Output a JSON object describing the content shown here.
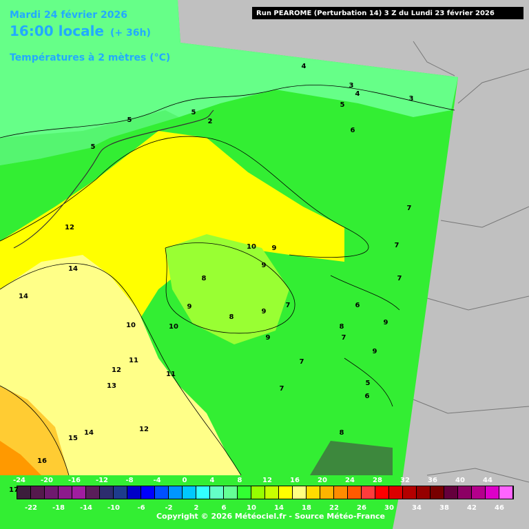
{
  "header": {
    "date": "Mardi 24 février 2026",
    "time": "16:00 locale",
    "lead": "(+ 36h)",
    "variable": "Températures à 2 mètres (°C)",
    "run": "Run PEAROME (Perturbation 14) 3 Z du Lundi 23 février 2026"
  },
  "map": {
    "contour_labels": [
      "4",
      "3",
      "4",
      "3",
      "5",
      "5",
      "5",
      "2",
      "6",
      "5",
      "7",
      "12",
      "10",
      "9",
      "7",
      "14",
      "9",
      "8",
      "7",
      "14",
      "7",
      "6",
      "9",
      "9",
      "8",
      "10",
      "10",
      "8",
      "9",
      "7",
      "9",
      "9",
      "11",
      "12",
      "7",
      "11",
      "13",
      "5",
      "7",
      "6",
      "14",
      "12",
      "8",
      "15",
      "16"
    ]
  },
  "colorbar": {
    "cursor_value": "17",
    "top_labels": [
      "-24",
      "-20",
      "-16",
      "-12",
      "-8",
      "-4",
      "0",
      "4",
      "8",
      "12",
      "16",
      "20",
      "24",
      "28",
      "32",
      "36",
      "40",
      "44"
    ],
    "bottom_labels": [
      "-22",
      "-18",
      "-14",
      "-10",
      "-6",
      "-2",
      "2",
      "6",
      "10",
      "14",
      "18",
      "22",
      "26",
      "30",
      "34",
      "38",
      "42",
      "46"
    ],
    "colors": [
      "#3c1e3c",
      "#551a4d",
      "#6e1a6e",
      "#8c1a8c",
      "#a01ea0",
      "#5a1e5a",
      "#2d2d6e",
      "#1e3c8c",
      "#0000c8",
      "#0000ff",
      "#0050ff",
      "#0096ff",
      "#00c8ff",
      "#32ffff",
      "#64ffc8",
      "#64ff96",
      "#32ff32",
      "#96ff00",
      "#c8ff00",
      "#ffff00",
      "#ffff80",
      "#ffdc00",
      "#ffb400",
      "#ff8c00",
      "#ff5a00",
      "#ff3c3c",
      "#ff0000",
      "#dc0000",
      "#b40000",
      "#960000",
      "#780000",
      "#64003c",
      "#8c0064",
      "#b4008c",
      "#dc00c8",
      "#ff64ff"
    ]
  },
  "footer": {
    "copyright": "Copyright © 2026 Météociel.fr - Source Météo-France"
  }
}
